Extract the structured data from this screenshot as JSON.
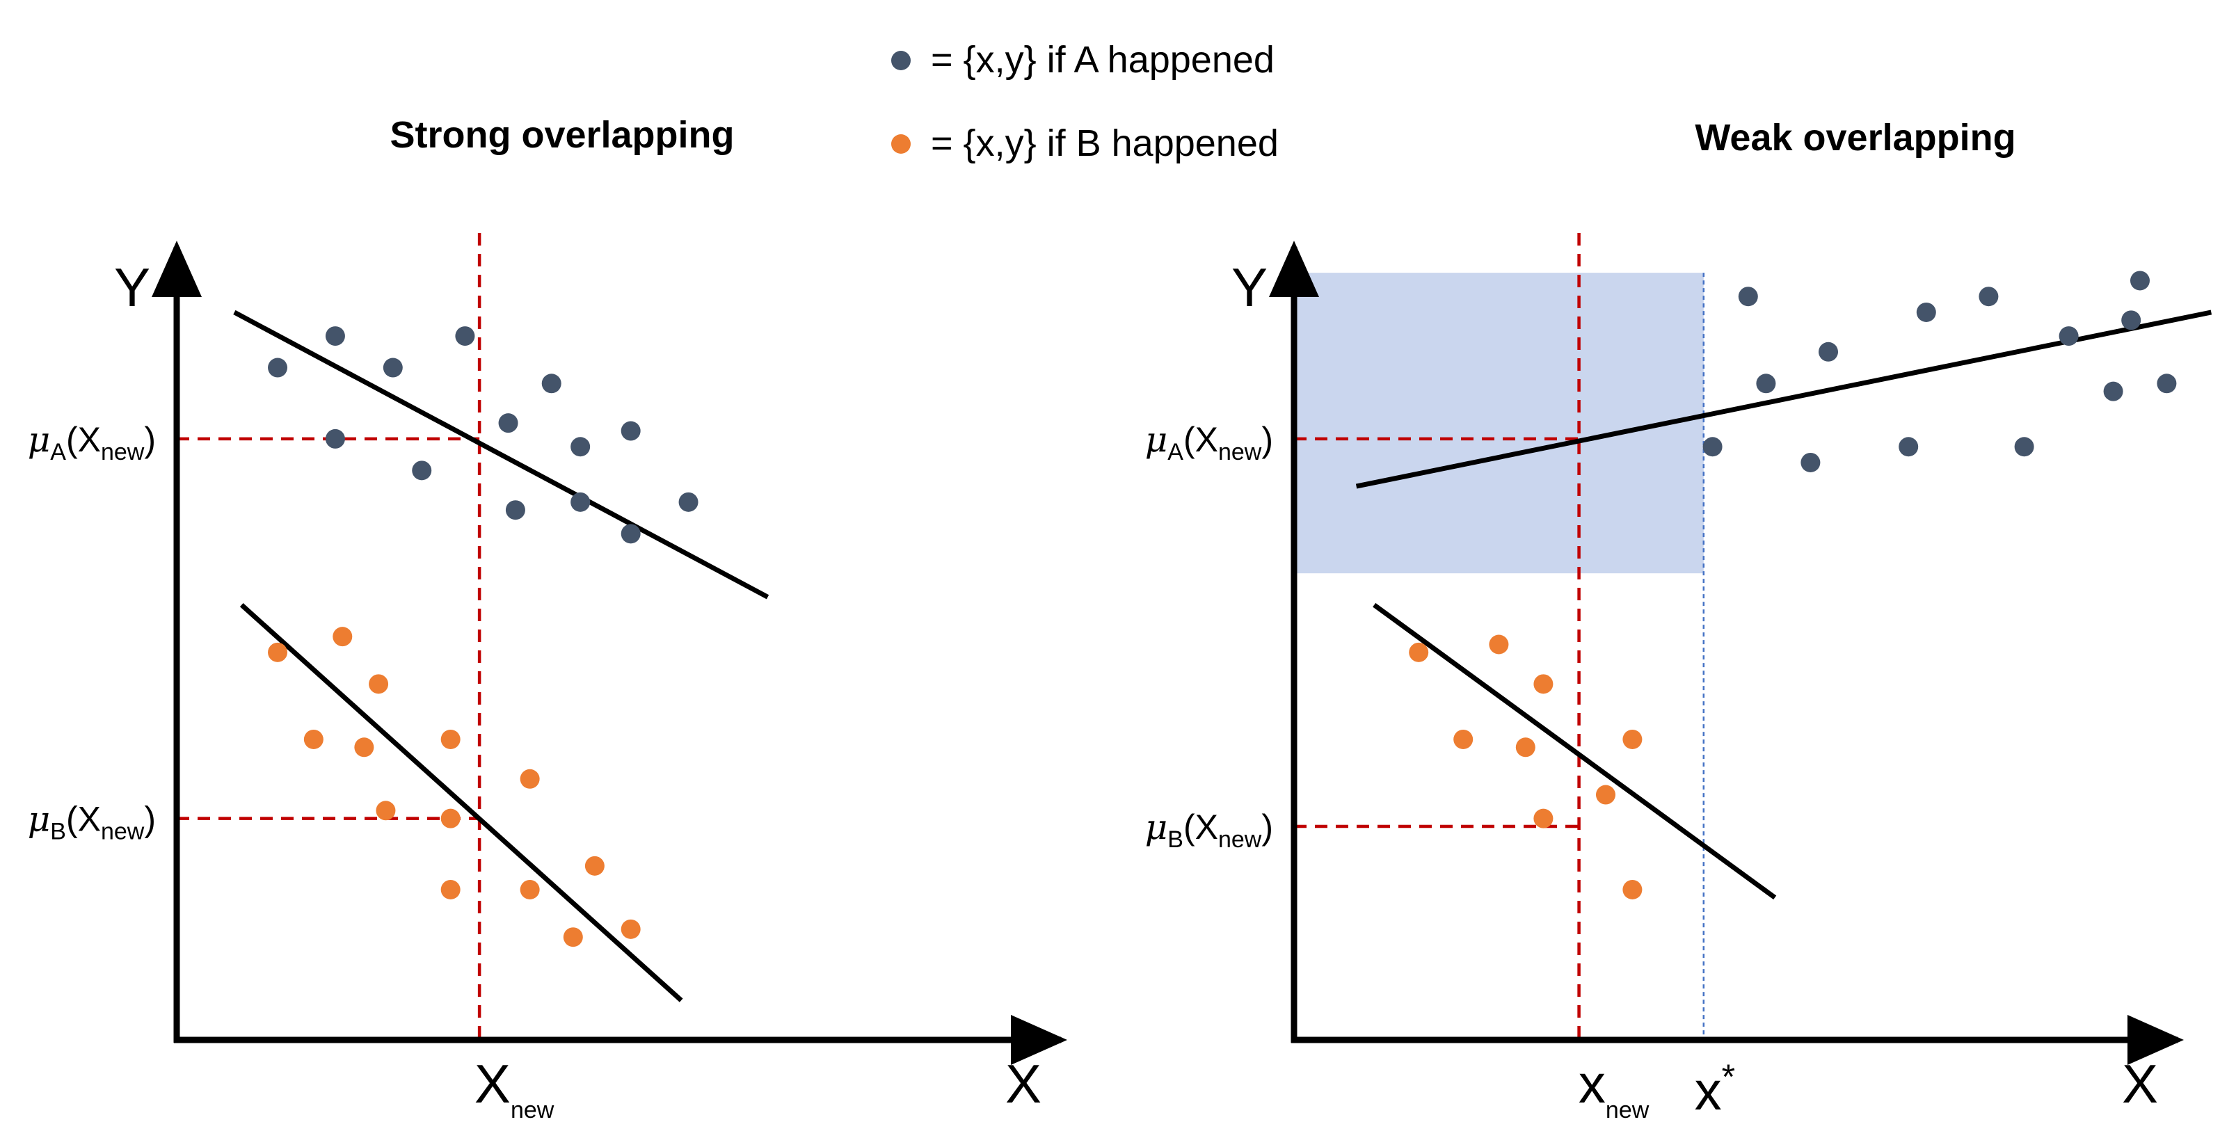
{
  "colors": {
    "A": "#44546a",
    "B": "#ed7d31",
    "guide": "#c00000",
    "region": "#cad6ee",
    "xstar_line": "#4472c4",
    "axis": "#000000"
  },
  "legend": {
    "A": "= {x,y} if A happened",
    "B": "= {x,y} if B happened"
  },
  "chart_data": [
    {
      "type": "scatter",
      "title": "Strong overlapping",
      "xlabel": "X",
      "ylabel": "Y",
      "xlim": [
        0,
        100
      ],
      "ylim": [
        0,
        100
      ],
      "x_tick": {
        "main": "X",
        "sub": "new",
        "x": 42
      },
      "y_ticks": [
        {
          "mu": "μ",
          "group": "A",
          "arg": "(X",
          "sub": "new",
          "close": ")",
          "y": 76
        },
        {
          "mu": "μ",
          "group": "B",
          "arg": "(X",
          "sub": "new",
          "close": ")",
          "y": 28
        }
      ],
      "series": [
        {
          "name": "A",
          "points": [
            [
              14,
              85
            ],
            [
              22,
              89
            ],
            [
              30,
              85
            ],
            [
              40,
              89
            ],
            [
              22,
              76
            ],
            [
              34,
              72
            ],
            [
              46,
              78
            ],
            [
              52,
              83
            ],
            [
              56,
              75
            ],
            [
              63,
              77
            ],
            [
              47,
              67
            ],
            [
              56,
              68
            ],
            [
              63,
              64
            ],
            [
              71,
              68
            ]
          ],
          "fit": [
            [
              8,
              92
            ],
            [
              82,
              56
            ]
          ]
        },
        {
          "name": "B",
          "points": [
            [
              14,
              49
            ],
            [
              23,
              51
            ],
            [
              28,
              45
            ],
            [
              19,
              38
            ],
            [
              26,
              37
            ],
            [
              38,
              38
            ],
            [
              49,
              33
            ],
            [
              38,
              28
            ],
            [
              29,
              29
            ],
            [
              58,
              22
            ],
            [
              49,
              19
            ],
            [
              38,
              19
            ],
            [
              55,
              13
            ],
            [
              63,
              14
            ]
          ],
          "fit": [
            [
              9,
              55
            ],
            [
              70,
              5
            ]
          ]
        }
      ]
    },
    {
      "type": "scatter",
      "title": "Weak overlapping",
      "xlabel": "X",
      "ylabel": "Y",
      "xlim": [
        0,
        100
      ],
      "ylim": [
        0,
        100
      ],
      "x_tick": {
        "main": "x",
        "sub": "new",
        "x": 32
      },
      "x_star": {
        "label": "x",
        "sup": "*",
        "x": 46
      },
      "y_ticks": [
        {
          "mu": "μ",
          "group": "A",
          "arg": "(X",
          "sub": "new",
          "close": ")",
          "y": 76
        },
        {
          "mu": "μ",
          "group": "B",
          "arg": "(X",
          "sub": "new",
          "close": ")",
          "y": 27
        }
      ],
      "shaded_region": {
        "x": [
          0,
          46
        ],
        "y": [
          59,
          97
        ]
      },
      "series": [
        {
          "name": "A",
          "points": [
            [
              53,
              83
            ],
            [
              60,
              87
            ],
            [
              71,
              92
            ],
            [
              87,
              89
            ],
            [
              94,
              91
            ],
            [
              47,
              75
            ],
            [
              58,
              73
            ],
            [
              69,
              75
            ],
            [
              82,
              75
            ],
            [
              92,
              82
            ],
            [
              98,
              83
            ],
            [
              51,
              94
            ],
            [
              78,
              94
            ],
            [
              95,
              96
            ]
          ],
          "fit": [
            [
              7,
              70
            ],
            [
              103,
              92
            ]
          ]
        },
        {
          "name": "B",
          "points": [
            [
              14,
              49
            ],
            [
              23,
              50
            ],
            [
              28,
              45
            ],
            [
              19,
              38
            ],
            [
              26,
              37
            ],
            [
              38,
              38
            ],
            [
              35,
              31
            ],
            [
              28,
              28
            ],
            [
              38,
              19
            ]
          ],
          "fit": [
            [
              9,
              55
            ],
            [
              54,
              18
            ]
          ]
        }
      ]
    }
  ]
}
